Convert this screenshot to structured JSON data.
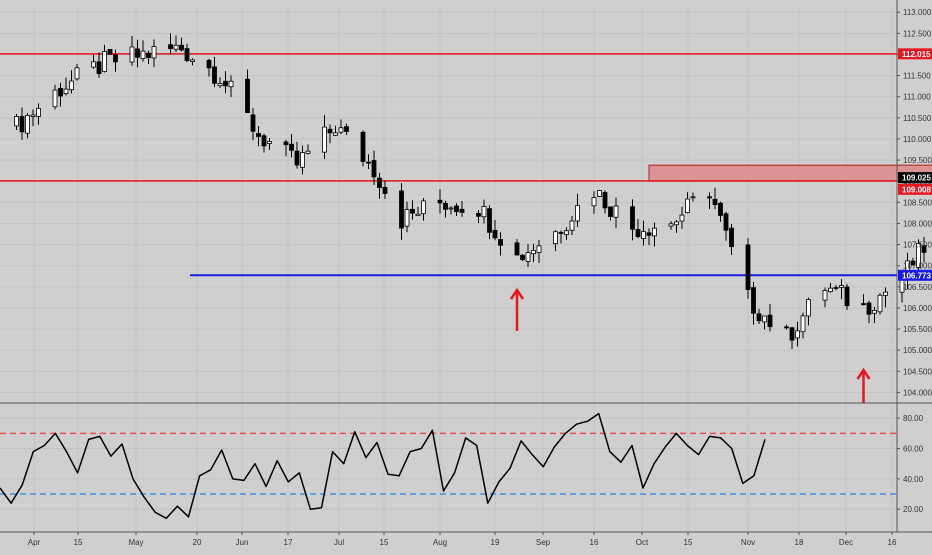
{
  "colors": {
    "background": "#cfcfcf",
    "grid": "#c3c3c3",
    "axis_line": "#555555",
    "candle_up": "#ffffff",
    "candle_down": "#000000",
    "resistance_line": "#e8161e",
    "support_line": "#1a1ae6",
    "zone_fill": "#dc8a8a",
    "zone_stroke": "#b02020",
    "arrow": "#e8161e",
    "rsi_line": "#000000",
    "rsi_upper": "#e85050",
    "rsi_lower": "#4a90d9",
    "price_label_bg_current": "#000000",
    "price_label_text": "#ffffff"
  },
  "chart_data": [
    {
      "type": "candlestick",
      "title": "",
      "date_range": [
        "2019-03-25",
        "2019-11-06"
      ],
      "x_tick_labels": [
        "Apr",
        "15",
        "May",
        "20",
        "Jun",
        "17",
        "Jul",
        "15",
        "Aug",
        "19",
        "Sep",
        "16",
        "Oct",
        "15",
        "Nov",
        "18",
        "Dec",
        "16"
      ],
      "y_tick_labels": [
        "104.000",
        "104.500",
        "105.000",
        "105.500",
        "106.000",
        "106.500",
        "107.000",
        "107.500",
        "108.000",
        "108.500",
        "109.000",
        "109.500",
        "110.000",
        "110.500",
        "111.000",
        "111.500",
        "112.000",
        "112.500",
        "113.000"
      ],
      "ylim": [
        103.75,
        113.1
      ],
      "grid": true,
      "close_series": [
        {
          "date": "2019-03-25",
          "close": 110.3
        },
        {
          "date": "2019-04-02",
          "close": 111.2
        },
        {
          "date": "2019-04-10",
          "close": 111.8
        },
        {
          "date": "2019-04-17",
          "close": 112.0
        },
        {
          "date": "2019-04-24",
          "close": 112.15
        },
        {
          "date": "2019-05-01",
          "close": 111.5
        },
        {
          "date": "2019-05-08",
          "close": 110.1
        },
        {
          "date": "2019-05-15",
          "close": 109.4
        },
        {
          "date": "2019-05-22",
          "close": 110.3
        },
        {
          "date": "2019-05-29",
          "close": 109.3
        },
        {
          "date": "2019-06-03",
          "close": 108.1
        },
        {
          "date": "2019-06-10",
          "close": 108.5
        },
        {
          "date": "2019-06-17",
          "close": 108.4
        },
        {
          "date": "2019-06-24",
          "close": 107.2
        },
        {
          "date": "2019-07-01",
          "close": 107.8
        },
        {
          "date": "2019-07-08",
          "close": 108.8
        },
        {
          "date": "2019-07-15",
          "close": 107.9
        },
        {
          "date": "2019-07-22",
          "close": 108.0
        },
        {
          "date": "2019-07-29",
          "close": 108.8
        },
        {
          "date": "2019-08-05",
          "close": 106.2
        },
        {
          "date": "2019-08-12",
          "close": 105.3
        },
        {
          "date": "2019-08-19",
          "close": 106.5
        },
        {
          "date": "2019-08-26",
          "close": 106.0
        },
        {
          "date": "2019-09-02",
          "close": 106.7
        },
        {
          "date": "2019-09-09",
          "close": 108.0
        },
        {
          "date": "2019-09-16",
          "close": 107.8
        },
        {
          "date": "2019-09-23",
          "close": 107.3
        },
        {
          "date": "2019-09-30",
          "close": 107.2
        },
        {
          "date": "2019-10-07",
          "close": 108.4
        },
        {
          "date": "2019-10-14",
          "close": 108.5
        },
        {
          "date": "2019-10-21",
          "close": 108.8
        },
        {
          "date": "2019-10-28",
          "close": 108.2
        },
        {
          "date": "2019-11-06",
          "close": 109.025
        }
      ],
      "horizontal_lines": [
        {
          "value": 112.015,
          "color": "#e8161e",
          "label": "112.015"
        },
        {
          "value": 109.008,
          "color": "#e8161e",
          "label": "109.008"
        },
        {
          "value": 106.773,
          "color": "#1a1ae6",
          "label": "106.773"
        }
      ],
      "current_price_label": "109.025",
      "resistance_zone": {
        "from_date": "2019-07-18",
        "to_date": "2019-12-09",
        "low": 109.0,
        "high": 109.38
      },
      "annotations": [
        {
          "type": "up-arrow",
          "date": "2019-06-24"
        },
        {
          "type": "up-arrow",
          "date": "2019-08-26"
        },
        {
          "type": "up-arrow",
          "date": "2019-11-28"
        }
      ]
    },
    {
      "type": "line",
      "title": "",
      "y_tick_labels": [
        "20.00",
        "40.00",
        "60.00",
        "80.00"
      ],
      "ylim": [
        5,
        90
      ],
      "grid": true,
      "reference_lines": [
        {
          "value": 70,
          "color": "#e85050",
          "style": "dashed"
        },
        {
          "value": 30,
          "color": "#4a90d9",
          "style": "dashed"
        }
      ],
      "series": [
        {
          "values": [
            34,
            24,
            36,
            58,
            62,
            70,
            58,
            44,
            66,
            68,
            55,
            63,
            40,
            28,
            18,
            14,
            22,
            15,
            42,
            46,
            59,
            40,
            39,
            50,
            35,
            52,
            38,
            44,
            20,
            21,
            58,
            50,
            71,
            54,
            64,
            43,
            42,
            58,
            60,
            72,
            32,
            44,
            67,
            62,
            24,
            38,
            47,
            65,
            56,
            48,
            61,
            70,
            76,
            78,
            83,
            58,
            51,
            62,
            34,
            50,
            61,
            70,
            62,
            56,
            68,
            67,
            60,
            37,
            42,
            66
          ]
        }
      ]
    }
  ]
}
